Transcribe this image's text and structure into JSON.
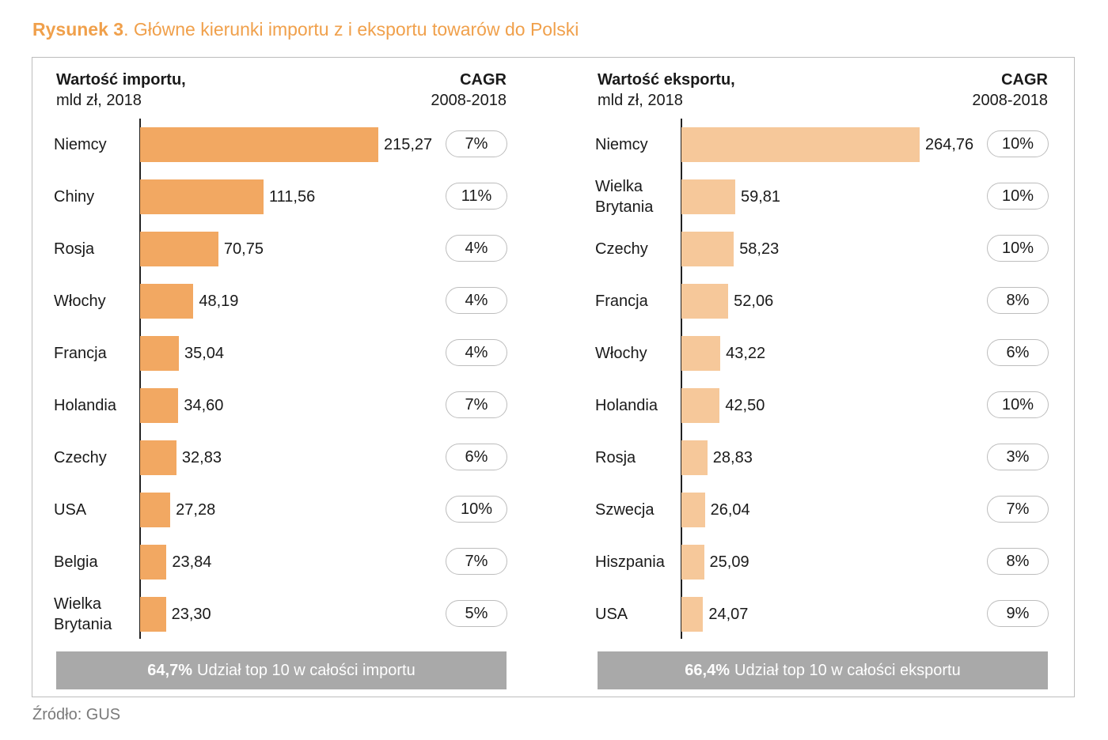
{
  "figure": {
    "label": "Rysunek 3",
    "title": ". Główne kierunki importu z i eksportu towarów do Polski",
    "source": "Źródło: GUS"
  },
  "colors": {
    "import_bar": "#f2a862",
    "export_bar": "#f6c89a",
    "accent": "#f0a04b",
    "footer": "#a9a9a9"
  },
  "chart_data": [
    {
      "type": "bar",
      "orientation": "horizontal",
      "title": "Wartość importu,",
      "unit": "mld zł, 2018",
      "cagr_title": "CAGR",
      "cagr_period": "2008-2018",
      "categories": [
        "Niemcy",
        "Chiny",
        "Rosja",
        "Włochy",
        "Francja",
        "Holandia",
        "Czechy",
        "USA",
        "Belgia",
        "Wielka\nBrytania"
      ],
      "values": [
        215.27,
        111.56,
        70.75,
        48.19,
        35.04,
        34.6,
        32.83,
        27.28,
        23.84,
        23.3
      ],
      "value_labels": [
        "215,27",
        "111,56",
        "70,75",
        "48,19",
        "35,04",
        "34,60",
        "32,83",
        "27,28",
        "23,84",
        "23,30"
      ],
      "cagr": [
        "7%",
        "11%",
        "4%",
        "4%",
        "4%",
        "7%",
        "6%",
        "10%",
        "7%",
        "5%"
      ],
      "xlim": [
        0,
        215.27
      ],
      "footer_pct": "64,7%",
      "footer_text": "Udział top 10 w całości importu"
    },
    {
      "type": "bar",
      "orientation": "horizontal",
      "title": "Wartość eksportu,",
      "unit": "mld zł, 2018",
      "cagr_title": "CAGR",
      "cagr_period": "2008-2018",
      "categories": [
        "Niemcy",
        "Wielka\nBrytania",
        "Czechy",
        "Francja",
        "Włochy",
        "Holandia",
        "Rosja",
        "Szwecja",
        "Hiszpania",
        "USA"
      ],
      "values": [
        264.76,
        59.81,
        58.23,
        52.06,
        43.22,
        42.5,
        28.83,
        26.04,
        25.09,
        24.07
      ],
      "value_labels": [
        "264,76",
        "59,81",
        "58,23",
        "52,06",
        "43,22",
        "42,50",
        "28,83",
        "26,04",
        "25,09",
        "24,07"
      ],
      "cagr": [
        "10%",
        "10%",
        "10%",
        "8%",
        "6%",
        "10%",
        "3%",
        "7%",
        "8%",
        "9%"
      ],
      "xlim": [
        0,
        264.76
      ],
      "footer_pct": "66,4%",
      "footer_text": "Udział top 10 w całości eksportu"
    }
  ]
}
